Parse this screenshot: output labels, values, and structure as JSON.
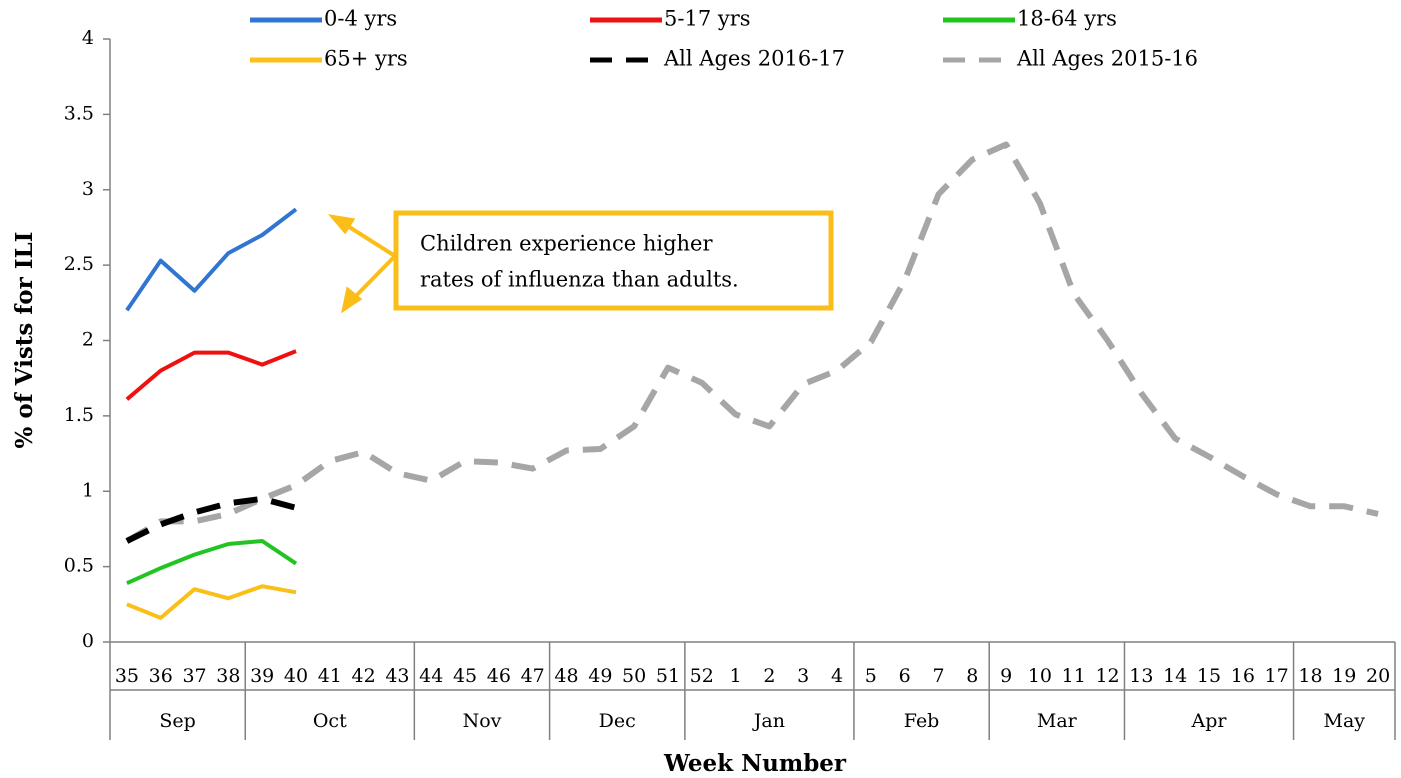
{
  "chart_data": {
    "type": "line",
    "y_label": "% of Vists for ILI",
    "x_label": "Week Number",
    "categories": [
      "35",
      "36",
      "37",
      "38",
      "39",
      "40",
      "41",
      "42",
      "43",
      "44",
      "45",
      "46",
      "47",
      "48",
      "49",
      "50",
      "51",
      "52",
      "1",
      "2",
      "3",
      "4",
      "5",
      "6",
      "7",
      "8",
      "9",
      "10",
      "11",
      "12",
      "13",
      "14",
      "15",
      "16",
      "17",
      "18",
      "19",
      "20"
    ],
    "months": [
      {
        "label": "Sep",
        "span": 4
      },
      {
        "label": "Oct",
        "span": 5
      },
      {
        "label": "Nov",
        "span": 4
      },
      {
        "label": "Dec",
        "span": 4
      },
      {
        "label": "Jan",
        "span": 5
      },
      {
        "label": "Feb",
        "span": 4
      },
      {
        "label": "Mar",
        "span": 4
      },
      {
        "label": "Apr",
        "span": 5
      },
      {
        "label": "May",
        "span": 3
      }
    ],
    "ylim": [
      0,
      4
    ],
    "yticks": [
      0,
      0.5,
      1,
      1.5,
      2,
      2.5,
      3,
      3.5,
      4
    ],
    "grid": false,
    "legend": "top",
    "series": [
      {
        "name": "0-4 yrs",
        "color": "#2f75d1",
        "dashed": false,
        "values": [
          2.2,
          2.53,
          2.33,
          2.58,
          2.7,
          2.87,
          null,
          null,
          null,
          null,
          null,
          null,
          null,
          null,
          null,
          null,
          null,
          null,
          null,
          null,
          null,
          null,
          null,
          null,
          null,
          null,
          null,
          null,
          null,
          null,
          null,
          null,
          null,
          null,
          null,
          null,
          null,
          null
        ]
      },
      {
        "name": "5-17 yrs",
        "color": "#ee1111",
        "dashed": false,
        "values": [
          1.61,
          1.8,
          1.92,
          1.92,
          1.84,
          1.93,
          null,
          null,
          null,
          null,
          null,
          null,
          null,
          null,
          null,
          null,
          null,
          null,
          null,
          null,
          null,
          null,
          null,
          null,
          null,
          null,
          null,
          null,
          null,
          null,
          null,
          null,
          null,
          null,
          null,
          null,
          null,
          null
        ]
      },
      {
        "name": "18-64 yrs",
        "color": "#22c422",
        "dashed": false,
        "values": [
          0.39,
          0.49,
          0.58,
          0.65,
          0.67,
          0.52,
          null,
          null,
          null,
          null,
          null,
          null,
          null,
          null,
          null,
          null,
          null,
          null,
          null,
          null,
          null,
          null,
          null,
          null,
          null,
          null,
          null,
          null,
          null,
          null,
          null,
          null,
          null,
          null,
          null,
          null,
          null,
          null
        ]
      },
      {
        "name": "65+ yrs",
        "color": "#fbbf1a",
        "dashed": false,
        "values": [
          0.25,
          0.16,
          0.35,
          0.29,
          0.37,
          0.33,
          null,
          null,
          null,
          null,
          null,
          null,
          null,
          null,
          null,
          null,
          null,
          null,
          null,
          null,
          null,
          null,
          null,
          null,
          null,
          null,
          null,
          null,
          null,
          null,
          null,
          null,
          null,
          null,
          null,
          null,
          null,
          null
        ]
      },
      {
        "name": "All Ages 2016-17",
        "color": "#000000",
        "dashed": true,
        "values": [
          0.67,
          0.78,
          0.86,
          0.92,
          0.95,
          0.89,
          null,
          null,
          null,
          null,
          null,
          null,
          null,
          null,
          null,
          null,
          null,
          null,
          null,
          null,
          null,
          null,
          null,
          null,
          null,
          null,
          null,
          null,
          null,
          null,
          null,
          null,
          null,
          null,
          null,
          null,
          null,
          null
        ]
      },
      {
        "name": "All Ages 2015-16",
        "color": "#a6a6a6",
        "dashed": true,
        "values": [
          0.67,
          0.8,
          0.8,
          0.85,
          0.95,
          1.04,
          1.2,
          1.26,
          1.12,
          1.07,
          1.2,
          1.19,
          1.15,
          1.27,
          1.28,
          1.43,
          1.82,
          1.72,
          1.51,
          1.43,
          1.71,
          1.8,
          1.99,
          2.4,
          2.97,
          3.2,
          3.3,
          2.91,
          2.31,
          2.0,
          1.65,
          1.35,
          1.23,
          1.1,
          0.98,
          0.9,
          0.9,
          0.85
        ]
      }
    ],
    "annotation": [
      "Children experience higher",
      "rates of influenza than adults."
    ]
  }
}
